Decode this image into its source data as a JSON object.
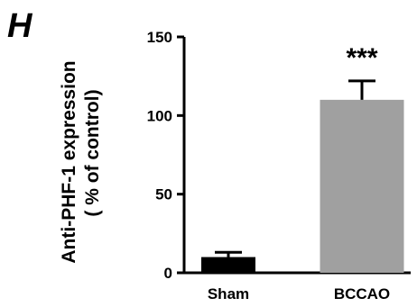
{
  "panel_label": "H",
  "chart_data": {
    "type": "bar",
    "title": "",
    "xlabel": "",
    "ylabel_lines": [
      "Anti-PHF-1  expression",
      "( % of control)"
    ],
    "categories": [
      "Sham",
      "BCCAO"
    ],
    "values": [
      10,
      110
    ],
    "errors": [
      3,
      12
    ],
    "bar_colors": [
      "#000000",
      "#a0a0a0"
    ],
    "ylim": [
      0,
      150
    ],
    "yticks": [
      0,
      50,
      100,
      150
    ],
    "ytick_labels": [
      "0",
      "50",
      "100",
      "150"
    ],
    "annotations": [
      {
        "category": "BCCAO",
        "text": "***"
      }
    ],
    "grid": false,
    "legend": "none"
  }
}
